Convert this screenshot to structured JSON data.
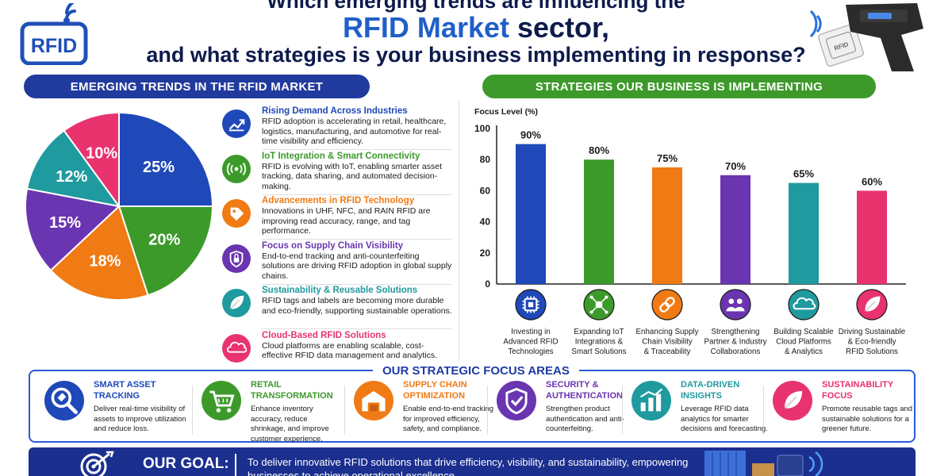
{
  "header": {
    "line1": "Which emerging trends are influencing the",
    "line2_accent": "RFID Market",
    "line2_rest": " sector,",
    "line3": "and what strategies is your business implementing in response?",
    "logo_text": "RFID",
    "tag_text": "RFID"
  },
  "left_section": {
    "title": "EMERGING TRENDS IN THE RFID MARKET"
  },
  "right_section": {
    "title": "STRATEGIES OUR BUSINESS IS IMPLEMENTING"
  },
  "pie_chart": {
    "type": "pie",
    "slices": [
      {
        "label": "25%",
        "value": 25,
        "color": "#1f48b8"
      },
      {
        "label": "20%",
        "value": 20,
        "color": "#3c9a2a"
      },
      {
        "label": "18%",
        "value": 18,
        "color": "#f07a14"
      },
      {
        "label": "15%",
        "value": 15,
        "color": "#6a35b0"
      },
      {
        "label": "12%",
        "value": 12,
        "color": "#1f9a9e"
      },
      {
        "label": "10%",
        "value": 10,
        "color": "#e8336f"
      }
    ]
  },
  "trends": [
    {
      "title": "Rising Demand Across Industries",
      "desc": "RFID adoption is accelerating in retail, healthcare, logistics, manufacturing, and automotive for real-time visibility and efficiency.",
      "color": "#1f48b8",
      "icon": "trending-up-icon"
    },
    {
      "title": "IoT Integration & Smart Connectivity",
      "desc": "RFID is evolving with IoT, enabling smarter asset tracking, data sharing, and automated decision-making.",
      "color": "#3c9a2a",
      "icon": "wireless-signal-icon"
    },
    {
      "title": "Advancements in RFID Technology",
      "desc": "Innovations in UHF, NFC, and RAIN RFID are improving read accuracy, range, and tag performance.",
      "color": "#f07a14",
      "icon": "tag-icon"
    },
    {
      "title": "Focus on Supply Chain Visibility",
      "desc": "End-to-end tracking and anti-counterfeiting solutions are driving RFID adoption in global supply chains.",
      "color": "#6a35b0",
      "icon": "shield-lock-icon"
    },
    {
      "title": "Sustainability & Reusable Solutions",
      "desc": "RFID tags and labels are becoming more durable and eco-friendly, supporting sustainable operations.",
      "color": "#1f9a9e",
      "icon": "leaf-icon"
    },
    {
      "title": "Cloud-Based RFID Solutions",
      "desc": "Cloud platforms are enabling scalable, cost-effective RFID data management and analytics.",
      "color": "#e8336f",
      "icon": "cloud-icon"
    }
  ],
  "chart_data": {
    "type": "bar",
    "ylabel": "Focus Level (%)",
    "ylim": [
      0,
      100
    ],
    "yticks": [
      0,
      20,
      40,
      60,
      80,
      100
    ],
    "categories": [
      "Investing in Advanced RFID Technologies",
      "Expanding IoT Integrations & Smart Solutions",
      "Enhancing Supply Chain Visibility & Traceability",
      "Strengthening Partner & Industry Collaborations",
      "Building Scalable Cloud Platforms & Analytics",
      "Driving Sustainable & Eco-friendly RFID Solutions"
    ],
    "category_lines": [
      [
        "Investing in",
        "Advanced RFID",
        "Technologies"
      ],
      [
        "Expanding IoT",
        "Integrations &",
        "Smart Solutions"
      ],
      [
        "Enhancing Supply",
        "Chain Visibility",
        "& Traceability"
      ],
      [
        "Strengthening",
        "Partner & Industry",
        "Collaborations"
      ],
      [
        "Building Scalable",
        "Cloud Platforms",
        "& Analytics"
      ],
      [
        "Driving Sustainable",
        "& Eco-friendly",
        "RFID Solutions"
      ]
    ],
    "values": [
      90,
      80,
      75,
      70,
      65,
      60
    ],
    "value_labels": [
      "90%",
      "80%",
      "75%",
      "70%",
      "65%",
      "60%"
    ],
    "colors": [
      "#1f48b8",
      "#3c9a2a",
      "#f07a14",
      "#6a35b0",
      "#1f9a9e",
      "#e8336f"
    ],
    "icons": [
      "chip-icon",
      "network-chip-icon",
      "link-icon",
      "people-icon",
      "cloud-icon",
      "leaf-icon"
    ]
  },
  "focus": {
    "title": "OUR STRATEGIC FOCUS AREAS",
    "items": [
      {
        "title": "Smart Asset Tracking",
        "desc": "Deliver real-time visibility of assets to improve utilization and reduce loss.",
        "color": "#1f48b8",
        "icon": "magnifier-tag-icon"
      },
      {
        "title": "Retail Transformation",
        "desc": "Enhance inventory accuracy, reduce shrinkage, and improve customer experience.",
        "color": "#3c9a2a",
        "icon": "cart-icon"
      },
      {
        "title": "Supply Chain Optimization",
        "desc": "Enable end-to-end tracking for improved efficiency, safety, and compliance.",
        "color": "#f07a14",
        "icon": "warehouse-icon"
      },
      {
        "title": "Security & Authentication",
        "desc": "Strengthen product authentication and anti-counterfeiting.",
        "color": "#6a35b0",
        "icon": "shield-check-icon"
      },
      {
        "title": "Data-Driven Insights",
        "desc": "Leverage RFID data analytics for smarter decisions and forecasting.",
        "color": "#1f9a9e",
        "icon": "analytics-icon"
      },
      {
        "title": "Sustainability Focus",
        "desc": "Promote reusable tags and sustainable solutions for a greener future.",
        "color": "#e8336f",
        "icon": "leaf-icon"
      }
    ]
  },
  "goal": {
    "label": "OUR GOAL:",
    "text": "To deliver innovative RFID solutions that drive efficiency, visibility, and sustainability, empowering businesses to achieve operational excellence."
  }
}
